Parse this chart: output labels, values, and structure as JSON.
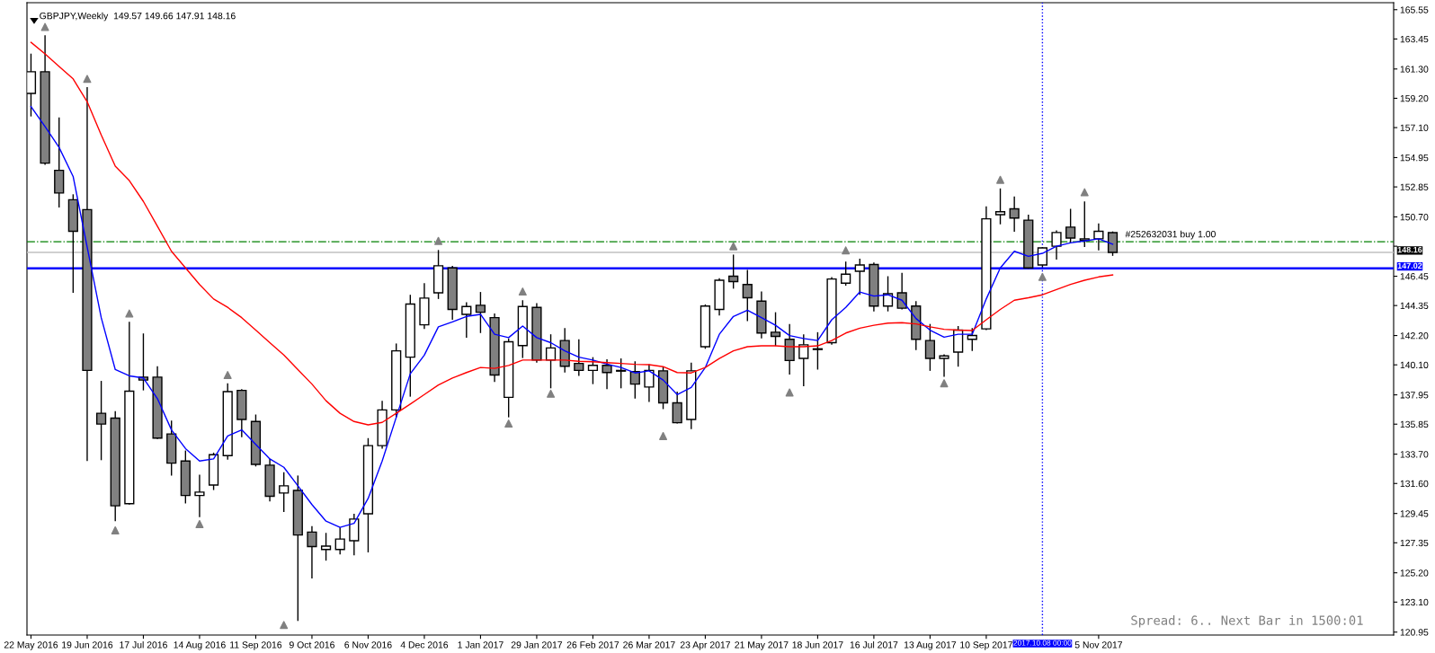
{
  "chart_data": {
    "type": "candlestick",
    "title": "GBPJPY,Weekly  149.57 149.66 147.91 148.16",
    "x": [
      "2016-05-22",
      "2016-05-29",
      "2016-06-05",
      "2016-06-12",
      "2016-06-19",
      "2016-06-26",
      "2016-07-03",
      "2016-07-10",
      "2016-07-17",
      "2016-07-24",
      "2016-07-31",
      "2016-08-07",
      "2016-08-14",
      "2016-08-21",
      "2016-08-28",
      "2016-09-04",
      "2016-09-11",
      "2016-09-18",
      "2016-09-25",
      "2016-10-02",
      "2016-10-09",
      "2016-10-16",
      "2016-10-23",
      "2016-10-30",
      "2016-11-06",
      "2016-11-13",
      "2016-11-20",
      "2016-11-27",
      "2016-12-04",
      "2016-12-11",
      "2016-12-18",
      "2016-12-25",
      "2017-01-01",
      "2017-01-08",
      "2017-01-15",
      "2017-01-22",
      "2017-01-29",
      "2017-02-05",
      "2017-02-12",
      "2017-02-19",
      "2017-02-26",
      "2017-03-05",
      "2017-03-12",
      "2017-03-19",
      "2017-03-26",
      "2017-04-02",
      "2017-04-09",
      "2017-04-16",
      "2017-04-23",
      "2017-04-30",
      "2017-05-07",
      "2017-05-14",
      "2017-05-21",
      "2017-05-28",
      "2017-06-04",
      "2017-06-11",
      "2017-06-18",
      "2017-06-25",
      "2017-07-02",
      "2017-07-09",
      "2017-07-16",
      "2017-07-23",
      "2017-07-30",
      "2017-08-06",
      "2017-08-13",
      "2017-08-20",
      "2017-08-27",
      "2017-09-03",
      "2017-09-10",
      "2017-09-17",
      "2017-09-24",
      "2017-10-01",
      "2017-10-08",
      "2017-10-15",
      "2017-10-22",
      "2017-10-29",
      "2017-11-05",
      "2017-11-12"
    ],
    "ohlc": [
      [
        159.55,
        162.4,
        157.9,
        161.1
      ],
      [
        161.1,
        163.72,
        154.43,
        154.55
      ],
      [
        154.04,
        157.82,
        151.37,
        152.41
      ],
      [
        151.93,
        152.32,
        145.26,
        149.67
      ],
      [
        151.22,
        160.0,
        133.21,
        139.7
      ],
      [
        136.63,
        138.95,
        133.27,
        135.86
      ],
      [
        136.28,
        136.78,
        128.9,
        130.0
      ],
      [
        130.15,
        143.18,
        130.09,
        138.21
      ],
      [
        139.22,
        142.35,
        138.27,
        139.01
      ],
      [
        139.22,
        140.0,
        134.79,
        134.85
      ],
      [
        135.15,
        136.1,
        132.17,
        133.06
      ],
      [
        133.21,
        133.96,
        130.17,
        130.74
      ],
      [
        130.74,
        132.23,
        129.19,
        130.98
      ],
      [
        131.49,
        133.81,
        131.13,
        133.66
      ],
      [
        133.6,
        138.78,
        133.3,
        138.18
      ],
      [
        138.27,
        138.36,
        134.91,
        136.19
      ],
      [
        136.04,
        136.54,
        132.82,
        132.97
      ],
      [
        132.91,
        133.36,
        130.32,
        130.68
      ],
      [
        130.92,
        132.41,
        129.55,
        131.43
      ],
      [
        131.1,
        132.17,
        121.75,
        127.91
      ],
      [
        128.12,
        128.54,
        124.79,
        127.08
      ],
      [
        126.87,
        128.06,
        126.07,
        127.11
      ],
      [
        126.87,
        128.45,
        126.52,
        127.62
      ],
      [
        127.5,
        129.43,
        126.46,
        129.05
      ],
      [
        129.43,
        134.85,
        126.66,
        134.31
      ],
      [
        134.31,
        137.53,
        134.1,
        136.87
      ],
      [
        136.87,
        141.63,
        136.34,
        141.1
      ],
      [
        140.65,
        145.12,
        137.82,
        144.46
      ],
      [
        142.97,
        145.95,
        142.67,
        144.88
      ],
      [
        145.26,
        148.33,
        144.82,
        147.2
      ],
      [
        147.05,
        147.2,
        143.33,
        144.07
      ],
      [
        143.72,
        144.58,
        142.05,
        144.28
      ],
      [
        144.37,
        145.32,
        142.38,
        143.87
      ],
      [
        143.48,
        143.78,
        138.87,
        139.37
      ],
      [
        137.77,
        141.99,
        136.34,
        141.75
      ],
      [
        141.48,
        144.73,
        140.59,
        144.28
      ],
      [
        144.22,
        144.52,
        140.26,
        140.44
      ],
      [
        140.44,
        142.29,
        138.42,
        141.31
      ],
      [
        141.84,
        142.73,
        139.55,
        140.0
      ],
      [
        140.2,
        141.93,
        139.31,
        139.7
      ],
      [
        139.7,
        140.65,
        138.72,
        140.06
      ],
      [
        140.06,
        140.5,
        138.36,
        139.55
      ],
      [
        139.7,
        140.56,
        138.42,
        139.65
      ],
      [
        139.61,
        140.35,
        137.68,
        138.72
      ],
      [
        138.51,
        140.14,
        137.44,
        139.7
      ],
      [
        139.67,
        139.97,
        136.93,
        137.38
      ],
      [
        137.38,
        138.18,
        135.89,
        135.95
      ],
      [
        136.19,
        140.26,
        135.5,
        139.67
      ],
      [
        141.4,
        144.43,
        141.25,
        144.31
      ],
      [
        144.07,
        146.31,
        143.63,
        146.16
      ],
      [
        146.45,
        148.0,
        145.56,
        146.07
      ],
      [
        145.86,
        146.9,
        143.24,
        144.91
      ],
      [
        144.67,
        145.35,
        141.99,
        142.38
      ],
      [
        142.44,
        143.87,
        141.45,
        142.14
      ],
      [
        141.93,
        143.03,
        139.4,
        140.41
      ],
      [
        140.56,
        142.29,
        138.57,
        141.54
      ],
      [
        141.25,
        142.44,
        139.76,
        141.2
      ],
      [
        141.69,
        146.39,
        141.54,
        146.25
      ],
      [
        145.95,
        147.5,
        145.77,
        146.6
      ],
      [
        146.81,
        147.7,
        145.11,
        147.26
      ],
      [
        147.29,
        147.44,
        143.93,
        144.31
      ],
      [
        144.31,
        146.45,
        143.93,
        145.2
      ],
      [
        145.26,
        146.69,
        144.07,
        144.16
      ],
      [
        144.31,
        144.67,
        141.16,
        141.93
      ],
      [
        141.84,
        143.03,
        139.67,
        140.56
      ],
      [
        140.56,
        140.86,
        139.25,
        140.74
      ],
      [
        141.01,
        142.88,
        139.97,
        142.59
      ],
      [
        141.93,
        142.73,
        141.1,
        142.2
      ],
      [
        142.68,
        151.45,
        142.59,
        150.56
      ],
      [
        150.86,
        152.74,
        150.17,
        151.07
      ],
      [
        151.28,
        152.17,
        149.64,
        150.62
      ],
      [
        150.47,
        150.86,
        146.99,
        147.05
      ],
      [
        147.26,
        148.54,
        147.1,
        148.48
      ],
      [
        148.6,
        149.73,
        147.64,
        149.58
      ],
      [
        149.97,
        151.28,
        148.84,
        149.19
      ],
      [
        149.13,
        151.81,
        148.54,
        149.01
      ],
      [
        149.13,
        150.23,
        148.3,
        149.67
      ],
      [
        149.57,
        149.66,
        147.91,
        148.16
      ]
    ],
    "series": [
      {
        "type": "line",
        "color": "#0000ff",
        "values": [
          158.6,
          157.17,
          155.68,
          153.6,
          148.54,
          143.48,
          139.76,
          139.31,
          139.16,
          137.68,
          135.44,
          134.1,
          133.21,
          133.36,
          135.0,
          135.44,
          134.4,
          133.36,
          132.76,
          131.43,
          130.09,
          128.9,
          128.45,
          128.75,
          130.53,
          133.21,
          136.34,
          139.46,
          140.8,
          142.82,
          143.18,
          143.57,
          143.72,
          142.29,
          142.05,
          142.88,
          142.05,
          141.69,
          141.1,
          140.65,
          140.44,
          140.15,
          139.91,
          139.52,
          139.67,
          139.01,
          137.97,
          138.48,
          139.91,
          142.29,
          143.57,
          144.01,
          143.48,
          142.94,
          142.2,
          141.99,
          141.84,
          143.33,
          144.22,
          145.32,
          145.03,
          145.12,
          144.73,
          143.42,
          142.59,
          142.08,
          142.29,
          142.29,
          144.82,
          147.05,
          148.24,
          147.88,
          148.09,
          148.6,
          148.84,
          148.98,
          149.13,
          148.75
        ]
      },
      {
        "type": "line",
        "color": "#ff0000",
        "values": [
          163.21,
          162.38,
          161.48,
          160.59,
          158.95,
          156.57,
          154.34,
          153.3,
          151.81,
          150.03,
          148.24,
          147.05,
          145.86,
          144.82,
          144.22,
          143.48,
          142.59,
          141.69,
          140.8,
          139.76,
          138.72,
          137.53,
          136.63,
          136.04,
          135.8,
          135.98,
          136.63,
          137.29,
          137.97,
          138.66,
          139.16,
          139.55,
          139.91,
          139.85,
          140.06,
          140.44,
          140.44,
          140.44,
          140.44,
          140.35,
          140.32,
          140.26,
          140.2,
          140.14,
          140.11,
          139.97,
          139.55,
          139.52,
          139.91,
          140.56,
          141.1,
          141.4,
          141.46,
          141.46,
          141.4,
          141.4,
          141.46,
          141.84,
          142.38,
          142.73,
          142.94,
          143.09,
          143.12,
          143.03,
          142.82,
          142.65,
          142.59,
          142.56,
          143.33,
          144.07,
          144.73,
          144.91,
          145.12,
          145.5,
          145.86,
          146.16,
          146.4,
          146.54
        ]
      },
      {
        "type": "scatter",
        "color": "#808080",
        "marker": "triangle",
        "x": [
          "2016-05-29",
          "2016-06-19",
          "2016-07-10",
          "2016-08-28",
          "2016-12-11",
          "2017-01-22",
          "2017-05-07",
          "2017-07-02",
          "2017-09-17",
          "2017-10-29"
        ],
        "values": [
          164.31,
          160.59,
          143.78,
          139.37,
          148.98,
          145.35,
          148.6,
          148.3,
          153.36,
          152.47
        ]
      },
      {
        "type": "scatter",
        "color": "#808080",
        "marker": "triangle",
        "x": [
          "2016-07-03",
          "2016-08-14",
          "2016-09-25",
          "2017-01-15",
          "2017-02-05",
          "2017-04-02",
          "2017-06-04",
          "2017-08-20",
          "2017-10-08"
        ],
        "values": [
          128.24,
          128.69,
          121.46,
          135.89,
          138.03,
          135.0,
          138.12,
          138.78,
          146.4
        ]
      }
    ],
    "xlim": [
      "2016-05-20",
      "2018-04-01"
    ],
    "xticks": [
      {
        "value": "2016-05-22",
        "label": "22 May 2016"
      },
      {
        "value": "2016-06-19",
        "label": "19 Jun 2016"
      },
      {
        "value": "2016-07-17",
        "label": "17 Jul 2016"
      },
      {
        "value": "2016-08-14",
        "label": "14 Aug 2016"
      },
      {
        "value": "2016-09-11",
        "label": "11 Sep 2016"
      },
      {
        "value": "2016-10-09",
        "label": "9 Oct 2016"
      },
      {
        "value": "2016-11-06",
        "label": "6 Nov 2016"
      },
      {
        "value": "2016-12-04",
        "label": "4 Dec 2016"
      },
      {
        "value": "2017-01-01",
        "label": "1 Jan 2017"
      },
      {
        "value": "2017-01-29",
        "label": "29 Jan 2017"
      },
      {
        "value": "2017-02-26",
        "label": "26 Feb 2017"
      },
      {
        "value": "2017-03-26",
        "label": "26 Mar 2017"
      },
      {
        "value": "2017-04-23",
        "label": "23 Apr 2017"
      },
      {
        "value": "2017-05-21",
        "label": "21 May 2017"
      },
      {
        "value": "2017-06-18",
        "label": "18 Jun 2017"
      },
      {
        "value": "2017-07-16",
        "label": "16 Jul 2017"
      },
      {
        "value": "2017-08-13",
        "label": "13 Aug 2017"
      },
      {
        "value": "2017-09-10",
        "label": "10 Sep 2017"
      },
      {
        "value": "2017-11-05",
        "label": "5 Nov 2017"
      }
    ],
    "ylim": [
      120.74,
      166.05
    ],
    "yticks": [
      {
        "value": 165.55,
        "label": "165.55"
      },
      {
        "value": 163.45,
        "label": "163.45"
      },
      {
        "value": 161.3,
        "label": "161.30"
      },
      {
        "value": 159.2,
        "label": "159.20"
      },
      {
        "value": 157.1,
        "label": "157.10"
      },
      {
        "value": 154.95,
        "label": "154.95"
      },
      {
        "value": 152.85,
        "label": "152.85"
      },
      {
        "value": 150.7,
        "label": "150.70"
      },
      {
        "value": 148.6,
        "label": null
      },
      {
        "value": 146.45,
        "label": "146.45"
      },
      {
        "value": 144.35,
        "label": "144.35"
      },
      {
        "value": 142.2,
        "label": "142.20"
      },
      {
        "value": 140.1,
        "label": "140.10"
      },
      {
        "value": 137.95,
        "label": "137.95"
      },
      {
        "value": 135.85,
        "label": "135.85"
      },
      {
        "value": 133.7,
        "label": "133.70"
      },
      {
        "value": 131.6,
        "label": "131.60"
      },
      {
        "value": 129.45,
        "label": "129.45"
      },
      {
        "value": 127.35,
        "label": "127.35"
      },
      {
        "value": 125.2,
        "label": "125.20"
      },
      {
        "value": 123.1,
        "label": "123.10"
      },
      {
        "value": 120.95,
        "label": "120.95"
      }
    ],
    "ref_lines": [
      {
        "axis": "y",
        "value": 148.92,
        "label": "#252632031 buy 1.00",
        "color": "#008000",
        "line_style": "dashed"
      },
      {
        "axis": "y",
        "value": 148.16,
        "label": "148.16",
        "color": "#c0c0c0",
        "line_style": "solid"
      },
      {
        "axis": "y",
        "value": 147.02,
        "label": "147.02",
        "color": "#0000ff",
        "line_style": "solid"
      },
      {
        "axis": "x",
        "value": "2017-10-08",
        "label": "2017.10.08 00:00",
        "color": "#0000ff",
        "line_style": "dotted"
      }
    ],
    "annotations": [
      "Spread: 6.. Next Bar in 1500:01"
    ],
    "grid": false,
    "legend": false
  }
}
